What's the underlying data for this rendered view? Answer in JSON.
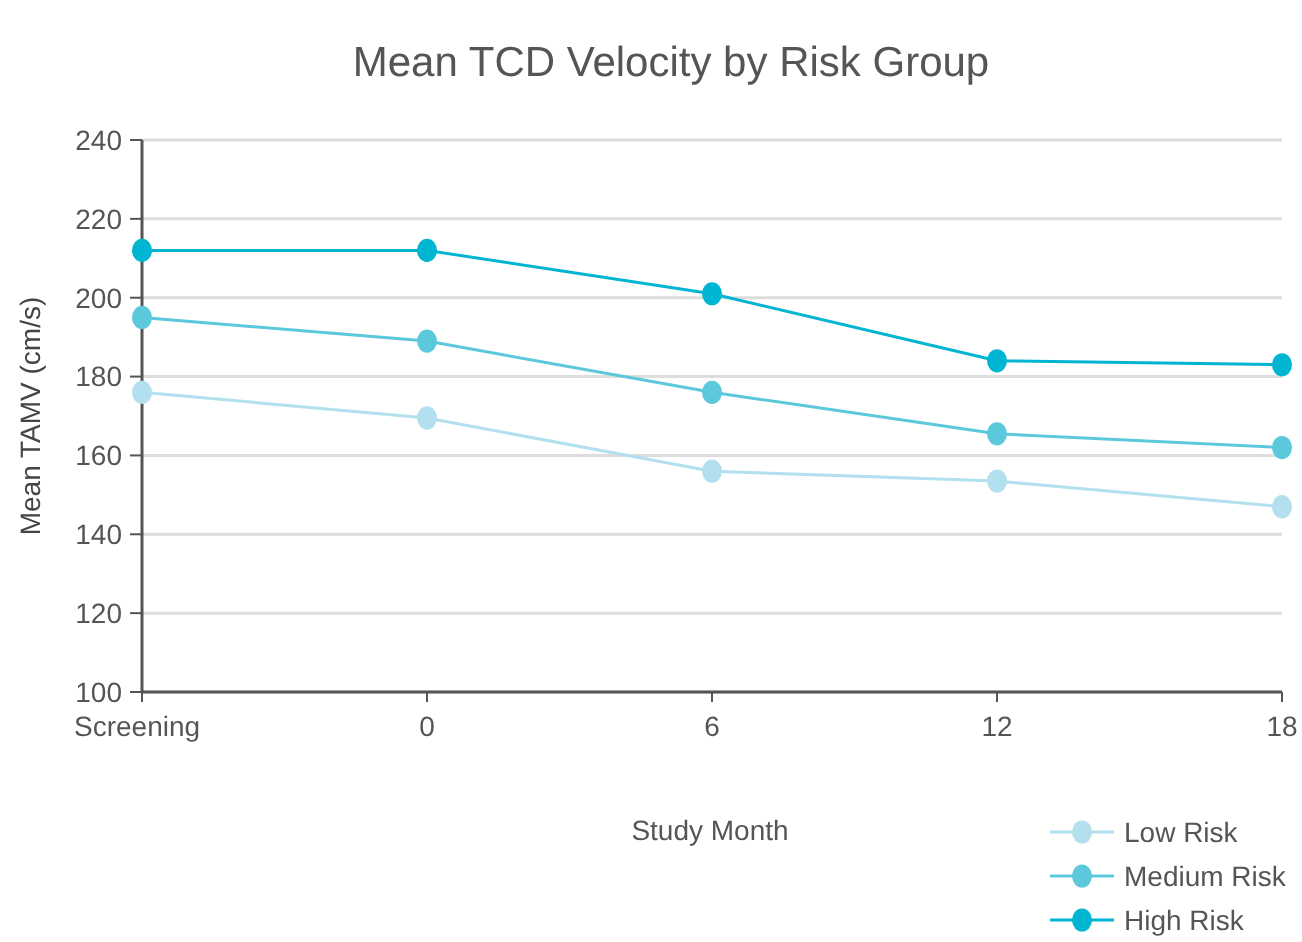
{
  "chart_data": {
    "type": "line",
    "title": "Mean TCD Velocity by Risk Group",
    "xlabel": "Study Month",
    "ylabel": "Mean TAMV (cm/s)",
    "categories": [
      "Screening",
      "0",
      "6",
      "12",
      "18"
    ],
    "series": [
      {
        "name": "Low Risk",
        "color": "#b3e0ee",
        "values": [
          176,
          169.5,
          156,
          153.5,
          147
        ]
      },
      {
        "name": "Medium Risk",
        "color": "#5bc8dc",
        "values": [
          195,
          189,
          176,
          165.5,
          162
        ]
      },
      {
        "name": "High Risk",
        "color": "#00b5d1",
        "values": [
          212,
          212,
          201,
          184,
          183
        ]
      }
    ],
    "ylim": [
      100,
      240
    ],
    "yticks": [
      100,
      120,
      140,
      160,
      180,
      200,
      220,
      240
    ],
    "grid": "y",
    "legend": "bottom right",
    "marker": "circle",
    "line_style": "solid"
  }
}
